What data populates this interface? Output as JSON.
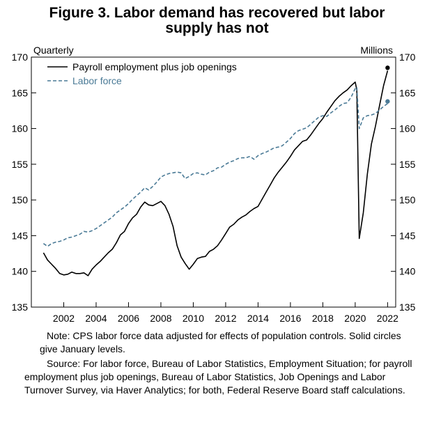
{
  "title_line1": "Figure 3. Labor demand has recovered but labor",
  "title_line2": "supply has not",
  "chart_data": {
    "type": "line",
    "left_axis_label": "Quarterly",
    "right_axis_label": "Millions",
    "ylim": [
      135,
      170
    ],
    "yticks": [
      135,
      140,
      145,
      150,
      155,
      160,
      165,
      170
    ],
    "xlim": [
      2000.0,
      2022.5
    ],
    "xticks": [
      2002,
      2004,
      2006,
      2008,
      2010,
      2012,
      2014,
      2016,
      2018,
      2020,
      2022
    ],
    "legend_position": "top-left",
    "series": [
      {
        "name": "Payroll employment plus job openings",
        "color": "#000000",
        "style": "solid",
        "points": [
          [
            2000.75,
            142.6
          ],
          [
            2001.0,
            141.6
          ],
          [
            2001.25,
            141.0
          ],
          [
            2001.5,
            140.4
          ],
          [
            2001.75,
            139.7
          ],
          [
            2002.0,
            139.5
          ],
          [
            2002.25,
            139.6
          ],
          [
            2002.5,
            139.9
          ],
          [
            2002.75,
            139.7
          ],
          [
            2003.0,
            139.7
          ],
          [
            2003.25,
            139.8
          ],
          [
            2003.5,
            139.4
          ],
          [
            2003.75,
            140.3
          ],
          [
            2004.0,
            140.9
          ],
          [
            2004.25,
            141.4
          ],
          [
            2004.5,
            142.0
          ],
          [
            2004.75,
            142.6
          ],
          [
            2005.0,
            143.1
          ],
          [
            2005.25,
            144.0
          ],
          [
            2005.5,
            145.1
          ],
          [
            2005.75,
            145.6
          ],
          [
            2006.0,
            146.7
          ],
          [
            2006.25,
            147.5
          ],
          [
            2006.5,
            148.0
          ],
          [
            2006.75,
            149.0
          ],
          [
            2007.0,
            149.7
          ],
          [
            2007.25,
            149.3
          ],
          [
            2007.5,
            149.2
          ],
          [
            2007.75,
            149.5
          ],
          [
            2008.0,
            149.8
          ],
          [
            2008.25,
            149.2
          ],
          [
            2008.5,
            148.0
          ],
          [
            2008.75,
            146.3
          ],
          [
            2009.0,
            143.6
          ],
          [
            2009.25,
            142.0
          ],
          [
            2009.5,
            141.1
          ],
          [
            2009.75,
            140.3
          ],
          [
            2010.0,
            141.0
          ],
          [
            2010.25,
            141.8
          ],
          [
            2010.5,
            142.0
          ],
          [
            2010.75,
            142.1
          ],
          [
            2011.0,
            142.8
          ],
          [
            2011.25,
            143.1
          ],
          [
            2011.5,
            143.6
          ],
          [
            2011.75,
            144.4
          ],
          [
            2012.0,
            145.3
          ],
          [
            2012.25,
            146.2
          ],
          [
            2012.5,
            146.6
          ],
          [
            2012.75,
            147.2
          ],
          [
            2013.0,
            147.6
          ],
          [
            2013.25,
            147.9
          ],
          [
            2013.5,
            148.4
          ],
          [
            2013.75,
            148.8
          ],
          [
            2014.0,
            149.1
          ],
          [
            2014.25,
            150.1
          ],
          [
            2014.5,
            151.1
          ],
          [
            2014.75,
            152.1
          ],
          [
            2015.0,
            153.1
          ],
          [
            2015.25,
            153.9
          ],
          [
            2015.5,
            154.6
          ],
          [
            2015.75,
            155.3
          ],
          [
            2016.0,
            156.1
          ],
          [
            2016.25,
            157.0
          ],
          [
            2016.5,
            157.6
          ],
          [
            2016.75,
            158.2
          ],
          [
            2017.0,
            158.4
          ],
          [
            2017.25,
            159.1
          ],
          [
            2017.5,
            159.9
          ],
          [
            2017.75,
            160.7
          ],
          [
            2018.0,
            161.4
          ],
          [
            2018.25,
            162.3
          ],
          [
            2018.5,
            163.1
          ],
          [
            2018.75,
            163.9
          ],
          [
            2019.0,
            164.5
          ],
          [
            2019.25,
            165.0
          ],
          [
            2019.5,
            165.4
          ],
          [
            2019.75,
            166.0
          ],
          [
            2020.0,
            166.5
          ],
          [
            2020.1,
            165.4
          ],
          [
            2020.25,
            144.6
          ],
          [
            2020.5,
            148.2
          ],
          [
            2020.75,
            153.6
          ],
          [
            2021.0,
            157.8
          ],
          [
            2021.25,
            160.3
          ],
          [
            2021.5,
            163.2
          ],
          [
            2021.75,
            166.0
          ],
          [
            2022.0,
            168.1
          ]
        ],
        "january_point": [
          2022.0,
          168.5
        ]
      },
      {
        "name": "Labor force",
        "color": "#4a7a96",
        "style": "dashed",
        "points": [
          [
            2000.75,
            143.9
          ],
          [
            2001.0,
            143.5
          ],
          [
            2001.25,
            143.9
          ],
          [
            2001.5,
            144.1
          ],
          [
            2001.75,
            144.2
          ],
          [
            2002.0,
            144.4
          ],
          [
            2002.25,
            144.7
          ],
          [
            2002.5,
            144.8
          ],
          [
            2002.75,
            145.0
          ],
          [
            2003.0,
            145.2
          ],
          [
            2003.25,
            145.6
          ],
          [
            2003.5,
            145.5
          ],
          [
            2003.75,
            145.7
          ],
          [
            2004.0,
            146.0
          ],
          [
            2004.25,
            146.4
          ],
          [
            2004.5,
            146.8
          ],
          [
            2004.75,
            147.2
          ],
          [
            2005.0,
            147.6
          ],
          [
            2005.25,
            148.2
          ],
          [
            2005.5,
            148.6
          ],
          [
            2005.75,
            149.0
          ],
          [
            2006.0,
            149.5
          ],
          [
            2006.25,
            150.1
          ],
          [
            2006.5,
            150.6
          ],
          [
            2006.75,
            151.1
          ],
          [
            2007.0,
            151.7
          ],
          [
            2007.25,
            151.4
          ],
          [
            2007.5,
            151.9
          ],
          [
            2007.75,
            152.5
          ],
          [
            2008.0,
            153.2
          ],
          [
            2008.25,
            153.5
          ],
          [
            2008.5,
            153.7
          ],
          [
            2008.75,
            153.8
          ],
          [
            2009.0,
            153.9
          ],
          [
            2009.25,
            153.8
          ],
          [
            2009.5,
            153.0
          ],
          [
            2009.75,
            153.3
          ],
          [
            2010.0,
            153.7
          ],
          [
            2010.25,
            153.8
          ],
          [
            2010.5,
            153.6
          ],
          [
            2010.75,
            153.5
          ],
          [
            2011.0,
            153.9
          ],
          [
            2011.25,
            154.1
          ],
          [
            2011.5,
            154.5
          ],
          [
            2011.75,
            154.6
          ],
          [
            2012.0,
            155.0
          ],
          [
            2012.25,
            155.3
          ],
          [
            2012.5,
            155.5
          ],
          [
            2012.75,
            155.8
          ],
          [
            2013.0,
            155.9
          ],
          [
            2013.25,
            155.9
          ],
          [
            2013.5,
            156.1
          ],
          [
            2013.75,
            155.7
          ],
          [
            2014.0,
            156.2
          ],
          [
            2014.25,
            156.5
          ],
          [
            2014.5,
            156.7
          ],
          [
            2014.75,
            157.0
          ],
          [
            2015.0,
            157.3
          ],
          [
            2015.25,
            157.4
          ],
          [
            2015.5,
            157.6
          ],
          [
            2015.75,
            158.1
          ],
          [
            2016.0,
            158.6
          ],
          [
            2016.25,
            159.3
          ],
          [
            2016.5,
            159.7
          ],
          [
            2016.75,
            159.9
          ],
          [
            2017.0,
            160.1
          ],
          [
            2017.25,
            160.6
          ],
          [
            2017.5,
            161.1
          ],
          [
            2017.75,
            161.6
          ],
          [
            2018.0,
            161.8
          ],
          [
            2018.25,
            161.7
          ],
          [
            2018.5,
            162.2
          ],
          [
            2018.75,
            162.6
          ],
          [
            2019.0,
            163.1
          ],
          [
            2019.25,
            163.5
          ],
          [
            2019.5,
            163.6
          ],
          [
            2019.75,
            164.4
          ],
          [
            2020.0,
            165.6
          ],
          [
            2020.1,
            165.8
          ],
          [
            2020.25,
            160.0
          ],
          [
            2020.5,
            161.5
          ],
          [
            2020.75,
            161.8
          ],
          [
            2021.0,
            161.9
          ],
          [
            2021.25,
            162.1
          ],
          [
            2021.5,
            162.6
          ],
          [
            2021.75,
            163.1
          ],
          [
            2022.0,
            163.5
          ]
        ],
        "january_point": [
          2022.0,
          163.8
        ]
      }
    ]
  },
  "notes": {
    "note": "Note: CPS labor force data adjusted for effects of population controls. Solid circles give January levels.",
    "source": "Source: For labor force, Bureau of Labor Statistics, Employment Situation; for payroll employment plus job openings, Bureau of Labor Statistics, Job Openings and Labor Turnover Survey, via Haver Analytics; for both, Federal Reserve Board staff calculations."
  }
}
